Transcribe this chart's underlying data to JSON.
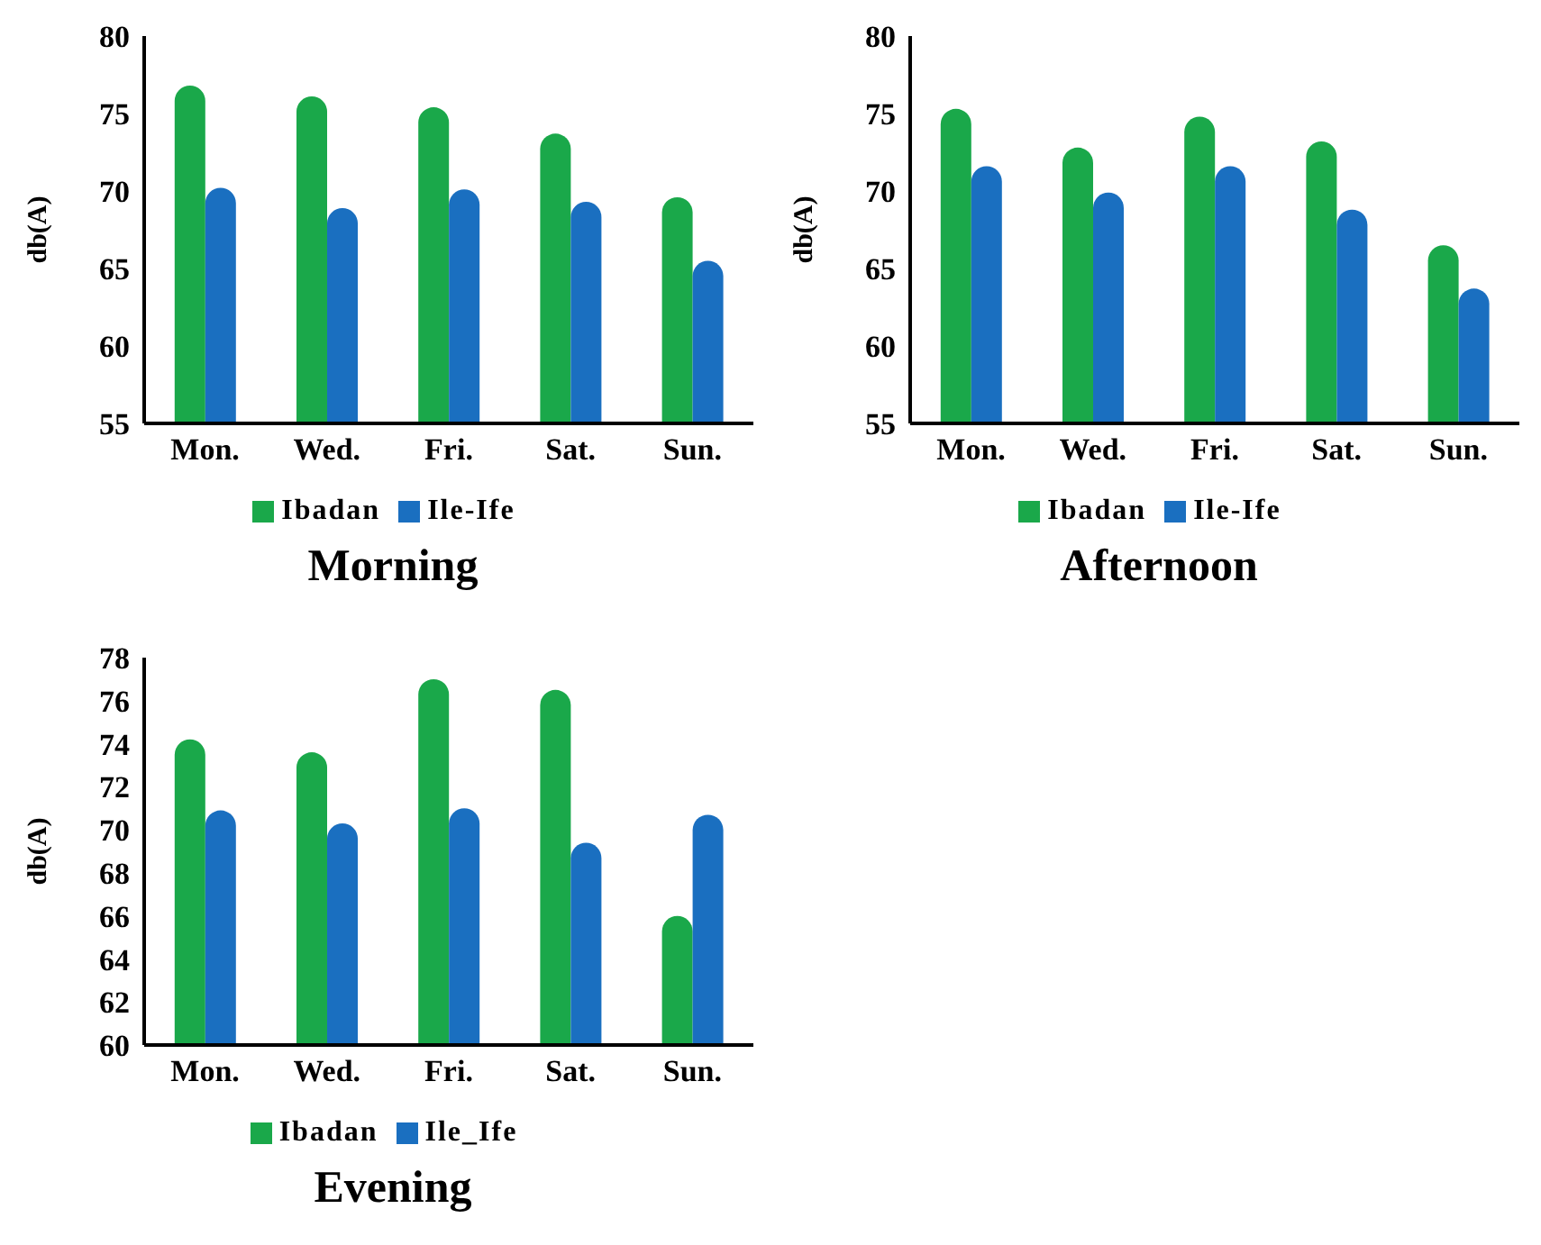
{
  "chart_data": [
    {
      "type": "bar",
      "title": "Morning",
      "ylabel": "db(A)",
      "categories": [
        "Mon.",
        "Wed.",
        "Fri.",
        "Sat.",
        "Sun."
      ],
      "ylim": [
        55,
        80
      ],
      "yticks": [
        55,
        60,
        65,
        70,
        75,
        80
      ],
      "grid": false,
      "legend": "bottom",
      "series": [
        {
          "name": "Ibadan",
          "color": "#1aa84a",
          "values": [
            76.8,
            76.1,
            75.4,
            73.7,
            69.6
          ]
        },
        {
          "name": "Ile-Ife",
          "color": "#1a6fc0",
          "values": [
            70.2,
            68.9,
            70.1,
            69.3,
            65.5
          ]
        }
      ]
    },
    {
      "type": "bar",
      "title": "Afternoon",
      "ylabel": "db(A)",
      "categories": [
        "Mon.",
        "Wed.",
        "Fri.",
        "Sat.",
        "Sun."
      ],
      "ylim": [
        55,
        80
      ],
      "yticks": [
        55,
        60,
        65,
        70,
        75,
        80
      ],
      "grid": false,
      "legend": "bottom",
      "series": [
        {
          "name": "Ibadan",
          "color": "#1aa84a",
          "values": [
            75.3,
            72.8,
            74.8,
            73.2,
            66.5
          ]
        },
        {
          "name": "Ile-Ife",
          "color": "#1a6fc0",
          "values": [
            71.6,
            69.9,
            71.6,
            68.8,
            63.7
          ]
        }
      ]
    },
    {
      "type": "bar",
      "title": "Evening",
      "ylabel": "db(A)",
      "categories": [
        "Mon.",
        "Wed.",
        "Fri.",
        "Sat.",
        "Sun."
      ],
      "ylim": [
        60,
        78
      ],
      "yticks": [
        60,
        62,
        64,
        66,
        68,
        70,
        72,
        74,
        76,
        78
      ],
      "grid": false,
      "legend": "bottom",
      "series": [
        {
          "name": "Ibadan",
          "color": "#1aa84a",
          "values": [
            74.2,
            73.6,
            77.0,
            76.5,
            66.0
          ]
        },
        {
          "name": "Ile_Ife",
          "color": "#1a6fc0",
          "values": [
            70.9,
            70.3,
            71.0,
            69.4,
            70.7
          ]
        }
      ]
    }
  ]
}
